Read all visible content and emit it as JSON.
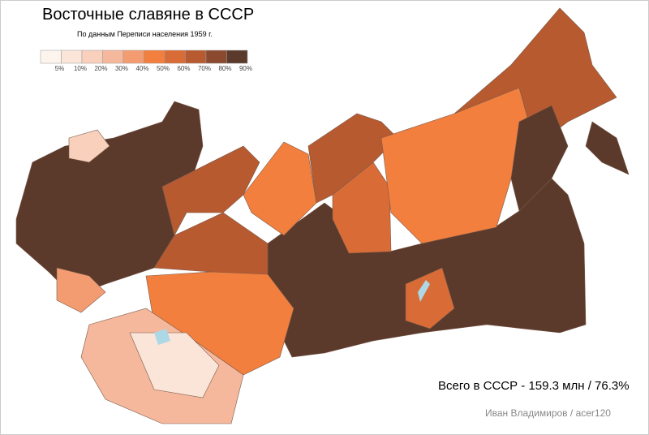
{
  "header": {
    "title": "Восточные славяне в СССР",
    "subtitle": "По данным Переписи населения 1959 г."
  },
  "legend": {
    "colors": [
      "#fdf4ee",
      "#fbe4d8",
      "#f8d0bc",
      "#f6b89c",
      "#f39c72",
      "#f27f3e",
      "#d96c36",
      "#b85a30",
      "#8b4a2f",
      "#5b3a2c"
    ],
    "labels": [
      "5%",
      "10%",
      "20%",
      "30%",
      "40%",
      "50%",
      "60%",
      "70%",
      "80%",
      "90%"
    ]
  },
  "footer": {
    "total": "Всего в СССР - 159.3 млн / 76.3%",
    "author": "Иван Владимиров / acer120"
  }
}
